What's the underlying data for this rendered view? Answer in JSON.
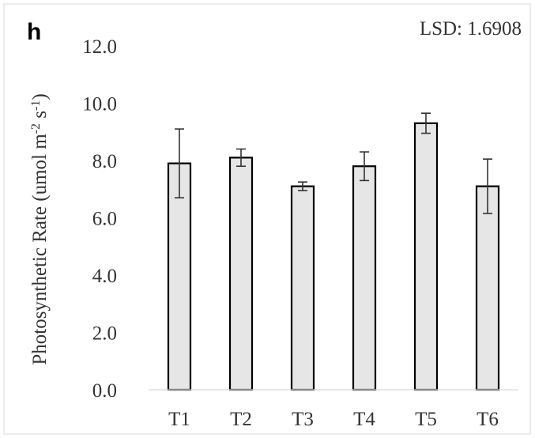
{
  "chart_data": {
    "type": "bar",
    "panel_label": "h",
    "annotation": "LSD: 1.6908",
    "categories": [
      "T1",
      "T2",
      "T3",
      "T4",
      "T5",
      "T6"
    ],
    "values": [
      7.9,
      8.1,
      7.1,
      7.8,
      9.3,
      7.1
    ],
    "errors": [
      1.2,
      0.3,
      0.15,
      0.5,
      0.35,
      0.95
    ],
    "ylabel_parts": [
      "Photosynthetic Rate (umol m",
      "-2",
      " s",
      "-",
      "1",
      ")"
    ],
    "ylim": [
      0,
      12
    ],
    "yticks": [
      "0.0",
      "2.0",
      "4.0",
      "6.0",
      "8.0",
      "10.0",
      "12.0"
    ],
    "bar_color": "#e7e6e6",
    "bar_edge_color": "#000000",
    "grid": false
  }
}
